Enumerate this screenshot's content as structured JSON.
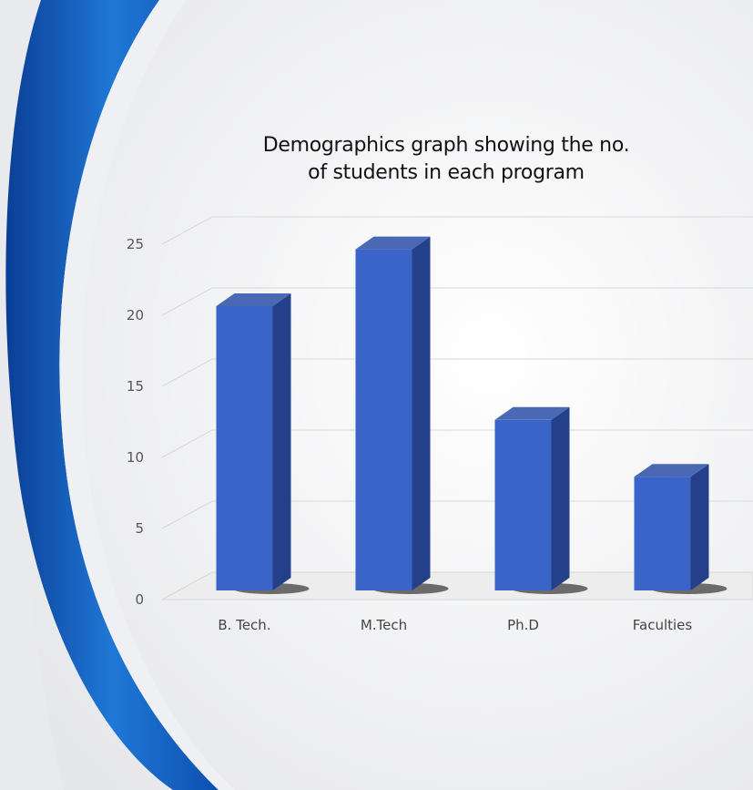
{
  "colors": {
    "bar_front": "#3a64c8",
    "bar_side": "#24408a",
    "bar_top": "#4a68b4",
    "swoosh": "#1565c0",
    "gridline": "#d8d8d8"
  },
  "chart_data": {
    "type": "bar",
    "style": "3d-column",
    "title_lines": [
      "Demographics graph showing the no.",
      "of students in each program"
    ],
    "categories": [
      "B. Tech.",
      "M.Tech",
      "Ph.D",
      "Faculties"
    ],
    "values": [
      20,
      24,
      12,
      8
    ],
    "ylim": [
      0,
      25
    ],
    "yticks": [
      "0",
      "5",
      "10",
      "15",
      "20",
      "25"
    ],
    "xlabel": "",
    "ylabel": "",
    "grid": true,
    "legend": "none"
  }
}
